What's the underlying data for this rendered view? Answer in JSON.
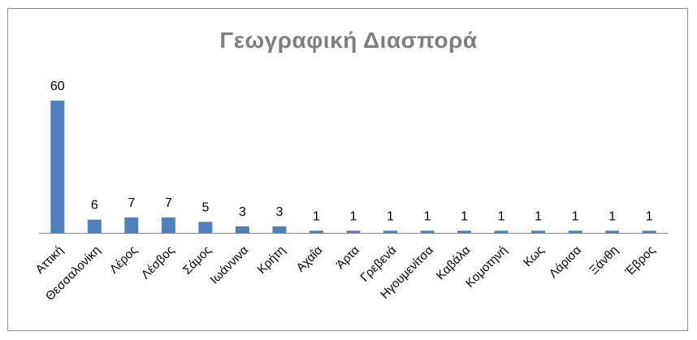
{
  "chart_data": {
    "type": "bar",
    "title": "Γεωγραφική Διασπορά",
    "xlabel": "",
    "ylabel": "",
    "categories": [
      "Αττική",
      "Θεσσαλονίκη",
      "Λέρος",
      "Λέσβος",
      "Σάμος",
      "Ιωάννινα",
      "Κρήτη",
      "Αχαΐα",
      "Άρτα",
      "Γρεβενά",
      "Ηγουμενίτσα",
      "Καβάλα",
      "Κομοτηνή",
      "Κως",
      "Λάρισα",
      "Ξάνθη",
      "Έβρος"
    ],
    "values": [
      60,
      6,
      7,
      7,
      5,
      3,
      3,
      1,
      1,
      1,
      1,
      1,
      1,
      1,
      1,
      1,
      1
    ],
    "ylim": [
      0,
      60
    ],
    "grid": false,
    "legend": "none",
    "bar_color": "#4f81bd",
    "axis_color": "#868686",
    "title_color": "#7f7f7f"
  }
}
